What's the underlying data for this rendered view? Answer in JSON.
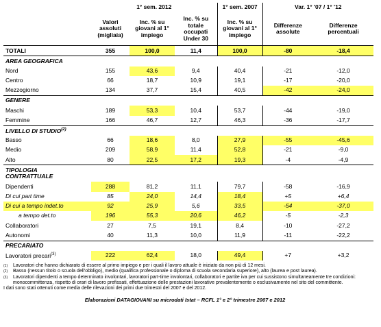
{
  "table": {
    "header_groups": [
      "1° sem. 2012",
      "1° sem. 2007",
      "Var. 1° '07 / 1° '12"
    ],
    "header": [
      "Valori assoluti (migliaia)",
      "Inc. % su giovani al 1° impiego",
      "Inc. % su totale occupati Under 30",
      "Inc. % su giovani al 1° impiego",
      "Differenze assolute",
      "Differenze percentuali"
    ],
    "rows": [
      {
        "label": "TOTALI",
        "values": [
          "355",
          "100,0",
          "11,4",
          "100,0",
          "-80",
          "-18,4"
        ]
      },
      {
        "section": "AREA GEOGRAFICA"
      },
      {
        "label": "Nord",
        "values": [
          "155",
          "43,6",
          "9,4",
          "40,4",
          "-21",
          "-12,0"
        ]
      },
      {
        "label": "Centro",
        "values": [
          "66",
          "18,7",
          "10,9",
          "19,1",
          "-17",
          "-20,0"
        ]
      },
      {
        "label": "Mezzogiorno",
        "values": [
          "134",
          "37,7",
          "15,4",
          "40,5",
          "-42",
          "-24,0"
        ]
      },
      {
        "section": "GENERE"
      },
      {
        "label": "Maschi",
        "values": [
          "189",
          "53,3",
          "10,4",
          "53,7",
          "-44",
          "-19,0"
        ]
      },
      {
        "label": "Femmine",
        "values": [
          "166",
          "46,7",
          "12,7",
          "46,3",
          "-36",
          "-17,7"
        ]
      },
      {
        "section": "LIVELLO DI STUDIO",
        "sup": "(2)"
      },
      {
        "label": "Basso",
        "values": [
          "66",
          "18,6",
          "8,0",
          "27,9",
          "-55",
          "-45,6"
        ]
      },
      {
        "label": "Medio",
        "values": [
          "209",
          "58,9",
          "11,4",
          "52,8",
          "-21",
          "-9,0"
        ]
      },
      {
        "label": "Alto",
        "values": [
          "80",
          "22,5",
          "17,2",
          "19,3",
          "-4",
          "-4,9"
        ]
      },
      {
        "section": "TIPOLOGIA CONTRATTUALE"
      },
      {
        "label": "Dipendenti",
        "values": [
          "288",
          "81,2",
          "11,1",
          "79,7",
          "-58",
          "-16,9"
        ]
      },
      {
        "label": "Di cui part time",
        "values": [
          "85",
          "24,0",
          "14,4",
          "18,4",
          "+5",
          "+6,4"
        ]
      },
      {
        "label": "Di cui a tempo indet.to",
        "values": [
          "92",
          "25,9",
          "5,6",
          "33,5",
          "-54",
          "-37,0"
        ]
      },
      {
        "label": "a tempo det.to",
        "values": [
          "196",
          "55,3",
          "20,6",
          "46,2",
          "-5",
          "-2,3"
        ]
      },
      {
        "label": "Collaboratori",
        "values": [
          "27",
          "7,5",
          "19,1",
          "8,4",
          "-10",
          "-27,2"
        ]
      },
      {
        "label": "Autonomi",
        "values": [
          "40",
          "11,3",
          "10,0",
          "11,9",
          "-11",
          "-22,2"
        ]
      },
      {
        "section": "PRECARIATO"
      },
      {
        "label": "Lavoratori precari",
        "sup": "(3)",
        "values": [
          "222",
          "62,4",
          "18,0",
          "49,4",
          "+7",
          "+3,2"
        ]
      }
    ]
  },
  "footnotes": [
    {
      "mark": "(1)",
      "text": "Lavoratori che hanno dichiarato di essere al primo impiego e per i quali il lavoro attuale è iniziato da non più di 12 mesi."
    },
    {
      "mark": "(2)",
      "text": "Basso (nessun titolo o scuola dell'obbligo), medio (qualifica professionale o diploma di scuola secondaria superiore), alto (laurea e post laurea)."
    },
    {
      "mark": "(3)",
      "text": "Lavoratori dipendenti a tempo determinato involontari, lavoratori part-time involontari, collaboratori e partite iva per cui sussistono simultaneamente tre condizioni: monocommittenza, rispetto di orari di lavoro prefissati, effettuazione delle prestazioni lavorative prevalentemente o esclusivamente nel sito del committente."
    }
  ],
  "note": "I dati sono stati ottenuti come media delle rilevazioni dei primi due trimestri del 2007 e del 2012.",
  "source": "Elaborazioni DATAGIOVANI su microdati Istat – RCFL 1° e 2° trimestre 2007 e 2012"
}
